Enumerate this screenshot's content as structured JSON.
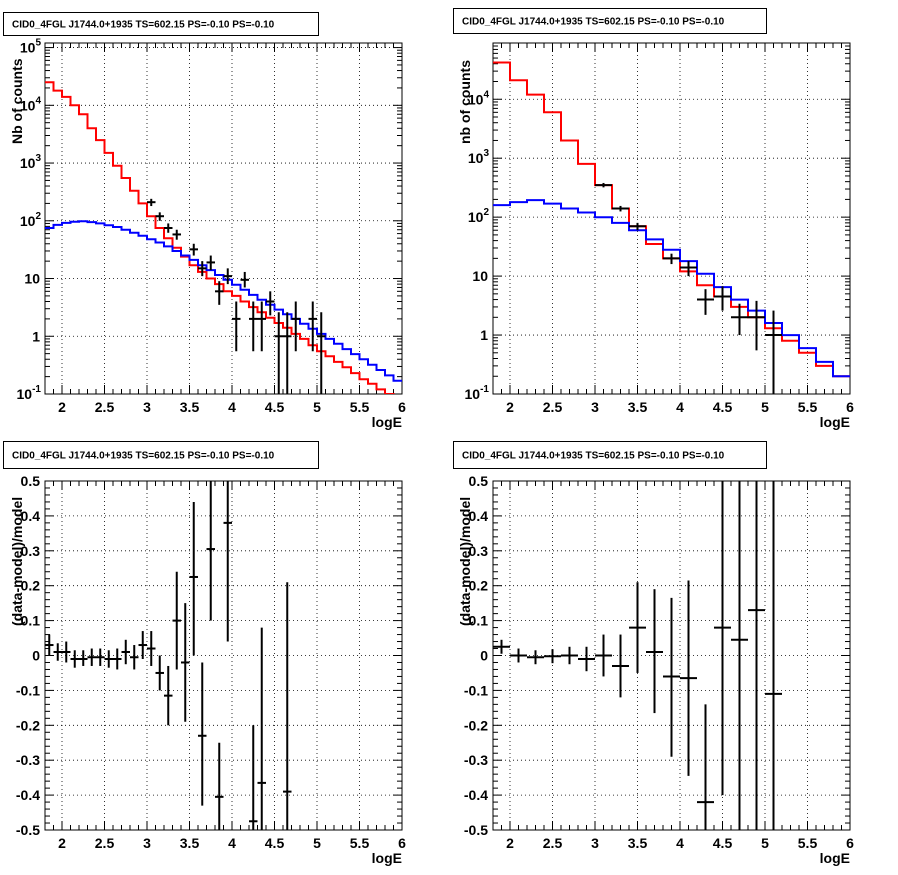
{
  "chart_data": [
    {
      "type": "line",
      "title": "CID0_4FGL J1744.0+1935 TS=602.15 PS=-0.10 PS=-0.10",
      "xlabel": "logE",
      "ylabel": "Nb of counts",
      "xlim": [
        1.8,
        6.0
      ],
      "ylim": [
        0.1,
        120000
      ],
      "yscale": "log",
      "grid": true,
      "xticks": [
        "2",
        "2.5",
        "3",
        "3.5",
        "4",
        "4.5",
        "5",
        "5.5",
        "6"
      ],
      "yticks": [
        "10^-1",
        "1",
        "10",
        "10^2",
        "10^3",
        "10^4",
        "10^5"
      ],
      "bin_edges": [
        1.8,
        1.9,
        2.0,
        2.1,
        2.2,
        2.3,
        2.4,
        2.5,
        2.6,
        2.7,
        2.8,
        2.9,
        3.0,
        3.1,
        3.2,
        3.3,
        3.4,
        3.5,
        3.6,
        3.7,
        3.8,
        3.9,
        4.0,
        4.1,
        4.2,
        4.3,
        4.4,
        4.5,
        4.6,
        4.7,
        4.8,
        4.9,
        5.0,
        5.1,
        5.2,
        5.3,
        5.4,
        5.5,
        5.6,
        5.7,
        5.8,
        5.9,
        6.0
      ],
      "series": [
        {
          "color": "#ff0000",
          "values": [
            25000,
            18000,
            14000,
            10000,
            7000,
            4000,
            2500,
            1500,
            900,
            550,
            330,
            200,
            120,
            75,
            50,
            34,
            24,
            17,
            13,
            10,
            8,
            6,
            5,
            4,
            3.2,
            2.6,
            2.1,
            1.7,
            1.4,
            1.1,
            0.9,
            0.7,
            0.55,
            0.45,
            0.36,
            0.29,
            0.23,
            0.18,
            0.15,
            0.12,
            0.1,
            0.08
          ]
        },
        {
          "color": "#0000ff",
          "values": [
            75,
            85,
            92,
            96,
            98,
            95,
            90,
            84,
            78,
            70,
            62,
            55,
            48,
            42,
            36,
            30,
            25,
            21,
            17,
            14,
            11.5,
            9.5,
            7.8,
            6.4,
            5.2,
            4.3,
            3.5,
            2.9,
            2.4,
            2.0,
            1.65,
            1.35,
            1.1,
            0.9,
            0.74,
            0.6,
            0.49,
            0.4,
            0.32,
            0.26,
            0.21,
            0.17
          ]
        }
      ],
      "points": [
        {
          "x": 3.05,
          "y": 210,
          "lo": 180,
          "hi": 240
        },
        {
          "x": 3.15,
          "y": 120,
          "lo": 100,
          "hi": 140
        },
        {
          "x": 3.25,
          "y": 75,
          "lo": 62,
          "hi": 90
        },
        {
          "x": 3.35,
          "y": 58,
          "lo": 47,
          "hi": 70
        },
        {
          "x": 3.55,
          "y": 32,
          "lo": 25,
          "hi": 40
        },
        {
          "x": 3.65,
          "y": 15,
          "lo": 11,
          "hi": 20
        },
        {
          "x": 3.75,
          "y": 19,
          "lo": 14,
          "hi": 25
        },
        {
          "x": 3.85,
          "y": 6,
          "lo": 3.5,
          "hi": 9
        },
        {
          "x": 3.95,
          "y": 11,
          "lo": 8,
          "hi": 15
        },
        {
          "x": 4.05,
          "y": 2,
          "lo": 0.55,
          "hi": 4
        },
        {
          "x": 4.15,
          "y": 9.5,
          "lo": 7,
          "hi": 13
        },
        {
          "x": 4.25,
          "y": 2,
          "lo": 0.55,
          "hi": 4
        },
        {
          "x": 4.35,
          "y": 2,
          "lo": 0.55,
          "hi": 4
        },
        {
          "x": 4.45,
          "y": 4,
          "lo": 2.3,
          "hi": 6
        },
        {
          "x": 4.55,
          "y": 1,
          "lo": 0.1,
          "hi": 2.6
        },
        {
          "x": 4.65,
          "y": 1,
          "lo": 0.1,
          "hi": 2.6
        },
        {
          "x": 4.75,
          "y": 2,
          "lo": 0.55,
          "hi": 4
        },
        {
          "x": 4.95,
          "y": 2,
          "lo": 0.55,
          "hi": 4
        },
        {
          "x": 5.05,
          "y": 1,
          "lo": 0.1,
          "hi": 2.6
        }
      ],
      "point_halfwidth": 0.05
    },
    {
      "type": "line",
      "title": "CID0_4FGL J1744.0+1935 TS=602.15 PS=-0.10 PS=-0.10",
      "xlabel": "logE",
      "ylabel": "nb of counts",
      "xlim": [
        1.8,
        6.0
      ],
      "ylim": [
        0.1,
        90000
      ],
      "yscale": "log",
      "grid": true,
      "xticks": [
        "2",
        "2.5",
        "3",
        "3.5",
        "4",
        "4.5",
        "5",
        "5.5",
        "6"
      ],
      "yticks": [
        "10^-1",
        "1",
        "10",
        "10^2",
        "10^3",
        "10^4"
      ],
      "bin_edges": [
        1.8,
        2.0,
        2.2,
        2.4,
        2.6,
        2.8,
        3.0,
        3.2,
        3.4,
        3.6,
        3.8,
        4.0,
        4.2,
        4.4,
        4.6,
        4.8,
        5.0,
        5.2,
        5.4,
        5.6,
        5.8,
        6.0
      ],
      "series": [
        {
          "color": "#ff0000",
          "values": [
            42000,
            21000,
            12000,
            6000,
            2000,
            800,
            350,
            140,
            70,
            35,
            20,
            12,
            7,
            4.5,
            3,
            2,
            1.3,
            0.8,
            0.5,
            0.3,
            0.2
          ]
        },
        {
          "color": "#0000ff",
          "values": [
            160,
            180,
            195,
            170,
            140,
            120,
            100,
            80,
            60,
            42,
            28,
            18,
            11,
            6.5,
            4,
            2.6,
            1.6,
            1.0,
            0.6,
            0.35,
            0.2
          ]
        }
      ],
      "points": [
        {
          "x": 3.1,
          "y": 350,
          "lo": 320,
          "hi": 380
        },
        {
          "x": 3.3,
          "y": 140,
          "lo": 125,
          "hi": 155
        },
        {
          "x": 3.5,
          "y": 70,
          "lo": 60,
          "hi": 80
        },
        {
          "x": 3.9,
          "y": 20,
          "lo": 16,
          "hi": 24
        },
        {
          "x": 4.1,
          "y": 14,
          "lo": 10,
          "hi": 18
        },
        {
          "x": 4.3,
          "y": 4,
          "lo": 2.2,
          "hi": 6
        },
        {
          "x": 4.5,
          "y": 4.5,
          "lo": 2.6,
          "hi": 6.7
        },
        {
          "x": 4.7,
          "y": 2,
          "lo": 1,
          "hi": 3.4
        },
        {
          "x": 4.9,
          "y": 2,
          "lo": 0.55,
          "hi": 3.8
        },
        {
          "x": 5.1,
          "y": 1,
          "lo": 0.1,
          "hi": 2.6
        }
      ],
      "point_halfwidth": 0.1
    },
    {
      "type": "scatter",
      "title": "CID0_4FGL J1744.0+1935 TS=602.15 PS=-0.10 PS=-0.10",
      "xlabel": "logE",
      "ylabel": "(data-model)/model",
      "xlim": [
        1.8,
        6.0
      ],
      "ylim": [
        -0.5,
        0.5
      ],
      "yscale": "linear",
      "grid": true,
      "xticks": [
        "2",
        "2.5",
        "3",
        "3.5",
        "4",
        "4.5",
        "5",
        "5.5",
        "6"
      ],
      "yticks": [
        "-0.5",
        "-0.4",
        "-0.3",
        "-0.2",
        "-0.1",
        "0",
        "0.1",
        "0.2",
        "0.3",
        "0.4",
        "0.5"
      ],
      "points": [
        {
          "x": 1.85,
          "y": 0.03,
          "lo": 0.0,
          "hi": 0.06
        },
        {
          "x": 1.95,
          "y": 0.01,
          "lo": -0.015,
          "hi": 0.035
        },
        {
          "x": 2.05,
          "y": 0.01,
          "lo": -0.02,
          "hi": 0.04
        },
        {
          "x": 2.15,
          "y": -0.01,
          "lo": -0.035,
          "hi": 0.015
        },
        {
          "x": 2.25,
          "y": -0.01,
          "lo": -0.03,
          "hi": 0.015
        },
        {
          "x": 2.35,
          "y": -0.005,
          "lo": -0.03,
          "hi": 0.02
        },
        {
          "x": 2.45,
          "y": -0.005,
          "lo": -0.03,
          "hi": 0.02
        },
        {
          "x": 2.55,
          "y": -0.01,
          "lo": -0.035,
          "hi": 0.015
        },
        {
          "x": 2.65,
          "y": -0.01,
          "lo": -0.04,
          "hi": 0.02
        },
        {
          "x": 2.75,
          "y": 0.01,
          "lo": -0.025,
          "hi": 0.045
        },
        {
          "x": 2.85,
          "y": -0.005,
          "lo": -0.04,
          "hi": 0.03
        },
        {
          "x": 2.95,
          "y": 0.03,
          "lo": -0.01,
          "hi": 0.07
        },
        {
          "x": 3.05,
          "y": 0.02,
          "lo": -0.03,
          "hi": 0.07
        },
        {
          "x": 3.15,
          "y": -0.05,
          "lo": -0.1,
          "hi": 0.0
        },
        {
          "x": 3.25,
          "y": -0.115,
          "lo": -0.2,
          "hi": -0.03
        },
        {
          "x": 3.35,
          "y": 0.1,
          "lo": -0.04,
          "hi": 0.24
        },
        {
          "x": 3.45,
          "y": -0.02,
          "lo": -0.19,
          "hi": 0.15
        },
        {
          "x": 3.55,
          "y": 0.225,
          "lo": 0.0,
          "hi": 0.44
        },
        {
          "x": 3.65,
          "y": -0.23,
          "lo": -0.43,
          "hi": -0.02
        },
        {
          "x": 3.75,
          "y": 0.305,
          "lo": 0.1,
          "hi": 0.5
        },
        {
          "x": 3.85,
          "y": -0.405,
          "lo": -0.5,
          "hi": -0.25
        },
        {
          "x": 3.95,
          "y": 0.38,
          "lo": 0.04,
          "hi": 0.5
        },
        {
          "x": 4.25,
          "y": -0.475,
          "lo": -0.5,
          "hi": -0.2
        },
        {
          "x": 4.35,
          "y": -0.365,
          "lo": -0.5,
          "hi": 0.08
        },
        {
          "x": 4.65,
          "y": -0.39,
          "lo": -0.5,
          "hi": 0.21
        }
      ],
      "point_halfwidth": 0.05
    },
    {
      "type": "scatter",
      "title": "CID0_4FGL J1744.0+1935 TS=602.15 PS=-0.10 PS=-0.10",
      "xlabel": "logE",
      "ylabel": "(data-model)/model",
      "xlim": [
        1.8,
        6.0
      ],
      "ylim": [
        -0.5,
        0.5
      ],
      "yscale": "linear",
      "grid": true,
      "xticks": [
        "2",
        "2.5",
        "3",
        "3.5",
        "4",
        "4.5",
        "5",
        "5.5",
        "6"
      ],
      "yticks": [
        "-0.5",
        "-0.4",
        "-0.3",
        "-0.2",
        "-0.1",
        "0",
        "0.1",
        "0.2",
        "0.3",
        "0.4",
        "0.5"
      ],
      "points": [
        {
          "x": 1.9,
          "y": 0.025,
          "lo": 0.005,
          "hi": 0.045
        },
        {
          "x": 2.1,
          "y": 0.0,
          "lo": -0.02,
          "hi": 0.02
        },
        {
          "x": 2.3,
          "y": -0.005,
          "lo": -0.025,
          "hi": 0.015
        },
        {
          "x": 2.5,
          "y": -0.002,
          "lo": -0.022,
          "hi": 0.018
        },
        {
          "x": 2.7,
          "y": 0.0,
          "lo": -0.025,
          "hi": 0.025
        },
        {
          "x": 2.9,
          "y": -0.01,
          "lo": -0.045,
          "hi": 0.025
        },
        {
          "x": 3.1,
          "y": 0.0,
          "lo": -0.06,
          "hi": 0.06
        },
        {
          "x": 3.3,
          "y": -0.03,
          "lo": -0.12,
          "hi": 0.06
        },
        {
          "x": 3.5,
          "y": 0.08,
          "lo": -0.05,
          "hi": 0.21
        },
        {
          "x": 3.7,
          "y": 0.01,
          "lo": -0.165,
          "hi": 0.19
        },
        {
          "x": 3.9,
          "y": -0.06,
          "lo": -0.29,
          "hi": 0.165
        },
        {
          "x": 4.1,
          "y": -0.065,
          "lo": -0.345,
          "hi": 0.215
        },
        {
          "x": 4.3,
          "y": -0.42,
          "lo": -0.5,
          "hi": -0.14
        },
        {
          "x": 4.5,
          "y": 0.08,
          "lo": -0.4,
          "hi": 0.5
        },
        {
          "x": 4.7,
          "y": 0.045,
          "lo": -0.5,
          "hi": 0.5
        },
        {
          "x": 4.9,
          "y": 0.13,
          "lo": -0.5,
          "hi": 0.5
        },
        {
          "x": 5.1,
          "y": -0.11,
          "lo": -0.5,
          "hi": 0.5
        }
      ],
      "point_halfwidth": 0.1
    }
  ]
}
